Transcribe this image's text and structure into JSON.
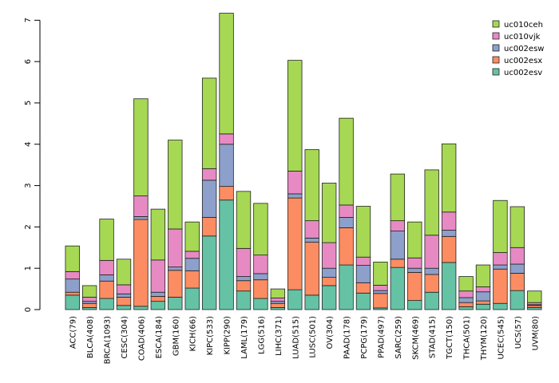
{
  "chart_data": {
    "type": "bar",
    "stacked": true,
    "title": "",
    "xlabel": "",
    "ylabel": "",
    "ylim": [
      0,
      7.2
    ],
    "yticks": [
      0,
      1,
      2,
      3,
      4,
      5,
      6,
      7
    ],
    "legend_position": "top-right",
    "categories": [
      "ACC(79)",
      "BLCA(408)",
      "BRCA(1093)",
      "CESC(304)",
      "COAD(406)",
      "ESCA(184)",
      "GBM(160)",
      "KICH(66)",
      "KIPC(533)",
      "KIPP(290)",
      "LAML(179)",
      "LGG(516)",
      "LIHC(371)",
      "LUAD(515)",
      "LUSC(501)",
      "OV(304)",
      "PAAD(178)",
      "PCPG(179)",
      "PPAD(497)",
      "SARC(259)",
      "SKCM(469)",
      "STAD(415)",
      "TGCT(150)",
      "THCA(501)",
      "THYM(120)",
      "UCEC(545)",
      "UCS(57)",
      "UVM(80)"
    ],
    "series": [
      {
        "name": "uc002esv",
        "color": "#66c2a5",
        "values": [
          0.35,
          0.05,
          0.27,
          0.1,
          0.08,
          0.2,
          0.3,
          0.52,
          1.78,
          2.65,
          0.45,
          0.27,
          0.05,
          0.48,
          0.35,
          0.58,
          1.08,
          0.4,
          0.04,
          1.02,
          0.22,
          0.42,
          1.14,
          0.07,
          0.13,
          0.15,
          0.46,
          0.05
        ]
      },
      {
        "name": "uc002esx",
        "color": "#fc8d62",
        "values": [
          0.07,
          0.1,
          0.42,
          0.2,
          2.1,
          0.12,
          0.65,
          0.42,
          0.45,
          0.33,
          0.25,
          0.45,
          0.1,
          2.22,
          1.28,
          0.2,
          0.9,
          0.25,
          0.35,
          0.2,
          0.68,
          0.43,
          0.63,
          0.1,
          0.08,
          0.83,
          0.42,
          0.05
        ]
      },
      {
        "name": "uc002esw",
        "color": "#8da0cb",
        "values": [
          0.32,
          0.05,
          0.15,
          0.08,
          0.07,
          0.1,
          0.08,
          0.3,
          0.9,
          1.02,
          0.1,
          0.15,
          0.05,
          0.1,
          0.1,
          0.22,
          0.25,
          0.42,
          0.07,
          0.68,
          0.1,
          0.15,
          0.15,
          0.12,
          0.22,
          0.1,
          0.22,
          0.02
        ]
      },
      {
        "name": "uc010vjk",
        "color": "#e78ac3",
        "values": [
          0.18,
          0.1,
          0.35,
          0.22,
          0.5,
          0.78,
          0.92,
          0.17,
          0.28,
          0.25,
          0.68,
          0.45,
          0.08,
          0.55,
          0.42,
          0.62,
          0.3,
          0.2,
          0.13,
          0.25,
          0.25,
          0.8,
          0.44,
          0.16,
          0.12,
          0.3,
          0.4,
          0.05
        ]
      },
      {
        "name": "uc010ceh",
        "color": "#a6d854",
        "values": [
          0.62,
          0.28,
          1.0,
          0.62,
          2.35,
          1.23,
          2.15,
          0.71,
          2.19,
          2.92,
          1.38,
          1.25,
          0.22,
          2.68,
          1.72,
          1.44,
          2.1,
          1.23,
          0.56,
          1.13,
          0.87,
          1.58,
          1.65,
          0.35,
          0.53,
          1.26,
          0.99,
          0.28
        ]
      }
    ]
  }
}
